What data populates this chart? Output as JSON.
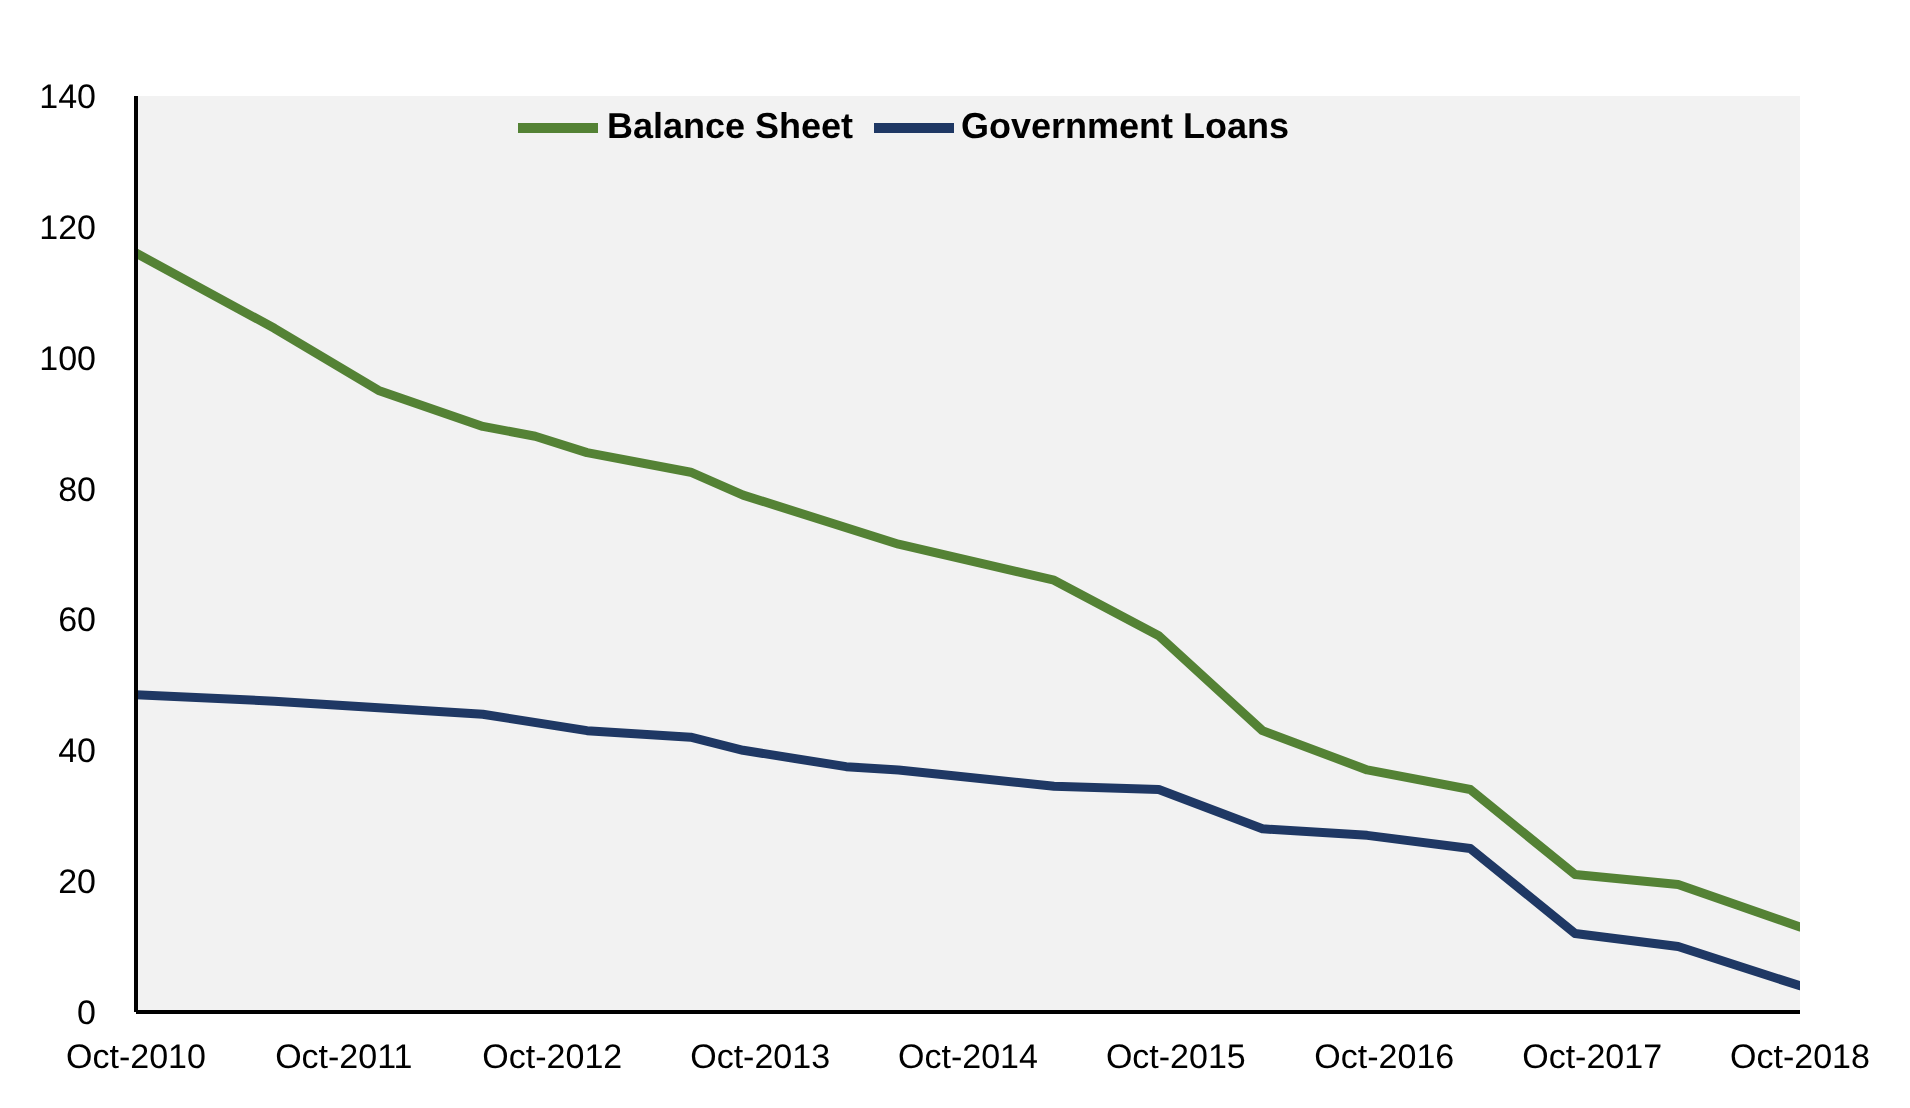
{
  "chart_data": {
    "type": "line",
    "legend": "top",
    "line_style": "solid",
    "marker": "none",
    "xlim": [
      "2010-10",
      "2018-10"
    ],
    "xticks": [
      {
        "value": "2010-10",
        "label": "Oct-2010"
      },
      {
        "value": "2011-10",
        "label": "Oct-2011"
      },
      {
        "value": "2012-10",
        "label": "Oct-2012"
      },
      {
        "value": "2013-10",
        "label": "Oct-2013"
      },
      {
        "value": "2014-10",
        "label": "Oct-2014"
      },
      {
        "value": "2015-10",
        "label": "Oct-2015"
      },
      {
        "value": "2016-10",
        "label": "Oct-2016"
      },
      {
        "value": "2017-10",
        "label": "Oct-2017"
      },
      {
        "value": "2018-10",
        "label": "Oct-2018"
      }
    ],
    "ylim": [
      0,
      140
    ],
    "yticks": [
      0,
      20,
      40,
      60,
      80,
      100,
      120,
      140
    ],
    "series": [
      {
        "name": "Government Loans",
        "color": "#1f3864",
        "x": [
          "2010-10",
          "2011-06",
          "2012-06",
          "2012-12",
          "2013-06",
          "2013-09",
          "2014-03",
          "2014-06",
          "2015-03",
          "2015-09",
          "2016-03",
          "2016-09",
          "2017-03",
          "2017-09",
          "2018-03",
          "2018-10"
        ],
        "values": [
          48.5,
          47.5,
          45.5,
          43,
          42,
          40,
          37.5,
          37,
          34.5,
          34,
          28,
          27,
          25,
          12,
          10,
          4
        ]
      },
      {
        "name": "Balance Sheet",
        "color": "#548235",
        "x": [
          "2010-10",
          "2011-06",
          "2011-12",
          "2012-06",
          "2012-09",
          "2012-12",
          "2013-06",
          "2013-09",
          "2014-06",
          "2015-03",
          "2015-09",
          "2016-03",
          "2016-09",
          "2017-03",
          "2017-09",
          "2018-03",
          "2018-10"
        ],
        "values": [
          116,
          104.5,
          95,
          89.5,
          88,
          85.5,
          82.5,
          79,
          71.5,
          66,
          57.5,
          43,
          37,
          34,
          21,
          19.5,
          13
        ]
      }
    ]
  }
}
